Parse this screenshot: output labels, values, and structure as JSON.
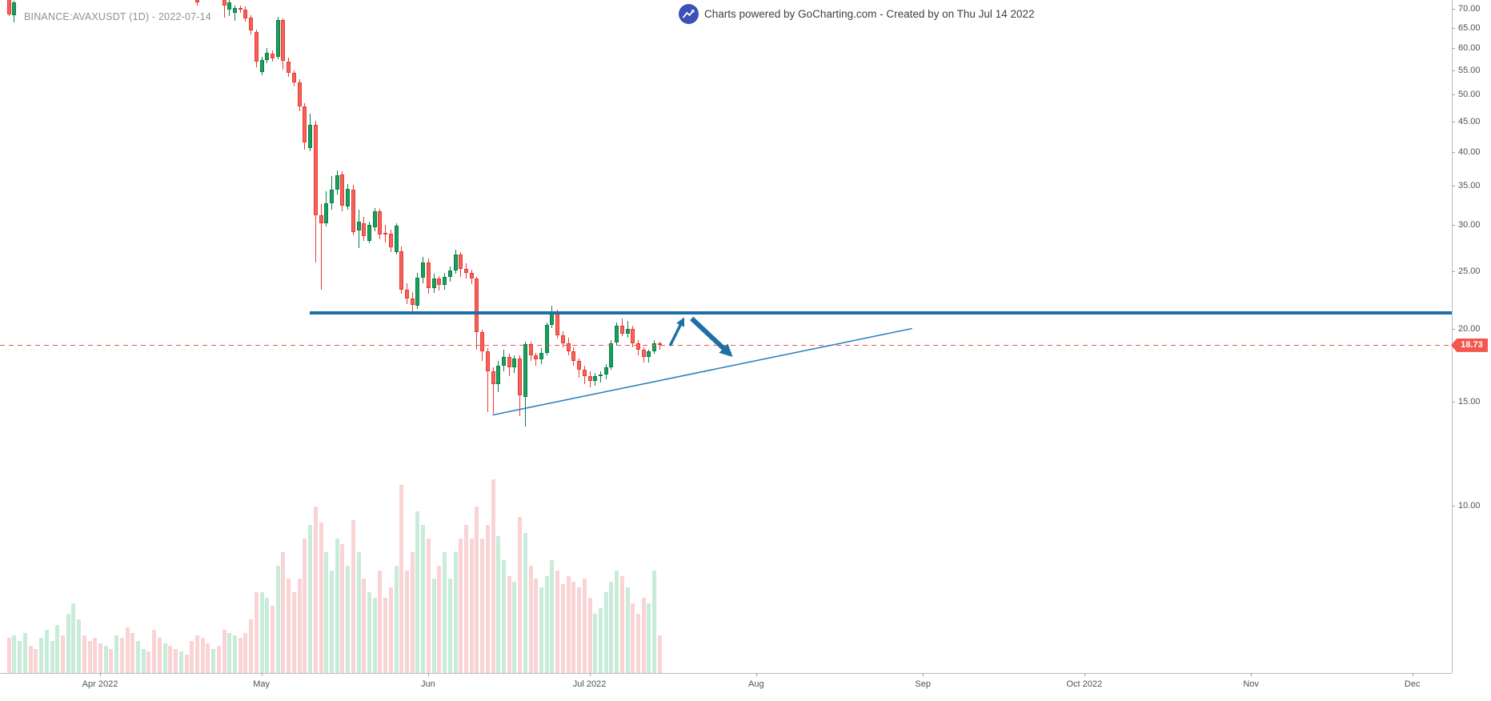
{
  "header": {
    "title": "BINANCE:AVAXUSDT (1D) - 2022-07-14",
    "credit_text": "Charts powered by GoCharting.com - Created by  on Thu Jul 14 2022",
    "logo_icon": "trend-up-arrow-in-circle"
  },
  "last_price": {
    "value": 18.73,
    "label": "18.73"
  },
  "colors": {
    "candle_up": "#19a05f",
    "candle_up_border": "#0d7f48",
    "candle_down": "#f4635b",
    "candle_down_border": "#e93b33",
    "vol_up": "#c8ecd9",
    "vol_down": "#fad3d4",
    "resistance_line": "#1d6fa5",
    "trendline": "#3183bd",
    "arrow": "#1d6fa5",
    "last_price_line": "#f2544d",
    "last_price_tag": "#f4564e",
    "axis_text": "#4d5258",
    "axis_line": "#b6bcc3"
  },
  "price_axis": {
    "ticks": [
      70,
      65,
      60,
      55,
      50,
      45,
      40,
      35,
      30,
      25,
      20,
      15,
      10
    ],
    "format": "0.00",
    "scale": "log"
  },
  "time_axis": {
    "months": [
      {
        "label": "Apr 2022",
        "date": "2022-04-01"
      },
      {
        "label": "May",
        "date": "2022-05-01"
      },
      {
        "label": "Jun",
        "date": "2022-06-01"
      },
      {
        "label": "Jul 2022",
        "date": "2022-07-01"
      },
      {
        "label": "Aug",
        "date": "2022-08-01"
      },
      {
        "label": "Sep",
        "date": "2022-09-01"
      },
      {
        "label": "Oct 2022",
        "date": "2022-10-01"
      },
      {
        "label": "Nov",
        "date": "2022-11-01"
      },
      {
        "label": "Dec",
        "date": "2022-12-01"
      }
    ]
  },
  "chart_data": {
    "type": "candlestick+volume",
    "symbol": "BINANCE:AVAXUSDT",
    "interval": "1D",
    "as_of": "2022-07-14",
    "price_scale": "log",
    "visible_price_range": [
      10,
      72.5
    ],
    "visible_date_range": [
      "2022-03-14",
      "2022-12-08"
    ],
    "grid": "off",
    "annotations": {
      "resistance_ray": {
        "price": 21.25,
        "from_date": "2022-05-10",
        "to": "right-edge"
      },
      "ascending_trendline": {
        "from": {
          "date": "2022-06-13",
          "price": 14.25
        },
        "to": {
          "date": "2022-08-30",
          "price": 20.0
        }
      },
      "arrow_up": {
        "from": {
          "date": "2022-07-16",
          "price": 18.7
        },
        "to": {
          "date": "2022-07-19",
          "price": 21.1
        }
      },
      "arrow_down": {
        "from": {
          "date": "2022-07-20",
          "price": 20.8
        },
        "to": {
          "date": "2022-07-28",
          "price": 17.8
        }
      },
      "last_price_dashed_line": 18.73
    },
    "volume_unit_note": "relative 0-100",
    "candles": [
      [
        "2022-03-15",
        73.8,
        74.2,
        68.0,
        68.5,
        13
      ],
      [
        "2022-03-16",
        68.3,
        72.3,
        66.4,
        71.9,
        14
      ],
      [
        "2022-03-17",
        null,
        null,
        null,
        null,
        12,
        "u"
      ],
      [
        "2022-03-18",
        null,
        null,
        null,
        null,
        15,
        "u"
      ],
      [
        "2022-03-19",
        null,
        null,
        null,
        null,
        10,
        "d"
      ],
      [
        "2022-03-20",
        null,
        null,
        null,
        null,
        9,
        "d"
      ],
      [
        "2022-03-21",
        null,
        null,
        null,
        null,
        13,
        "u"
      ],
      [
        "2022-03-22",
        null,
        null,
        null,
        null,
        16,
        "u"
      ],
      [
        "2022-03-23",
        null,
        null,
        null,
        null,
        12,
        "u"
      ],
      [
        "2022-03-24",
        null,
        null,
        null,
        null,
        18,
        "u"
      ],
      [
        "2022-03-25",
        null,
        null,
        null,
        null,
        14,
        "d"
      ],
      [
        "2022-03-26",
        null,
        null,
        null,
        null,
        22,
        "u"
      ],
      [
        "2022-03-27",
        null,
        null,
        null,
        null,
        26,
        "u"
      ],
      [
        "2022-03-28",
        null,
        null,
        null,
        null,
        20,
        "u"
      ],
      [
        "2022-03-29",
        null,
        null,
        null,
        null,
        14,
        "d"
      ],
      [
        "2022-03-30",
        null,
        null,
        null,
        null,
        12,
        "d"
      ],
      [
        "2022-03-31",
        null,
        null,
        null,
        null,
        13,
        "d"
      ],
      [
        "2022-04-01",
        null,
        null,
        null,
        null,
        11,
        "d"
      ],
      [
        "2022-04-02",
        null,
        null,
        null,
        null,
        10,
        "u"
      ],
      [
        "2022-04-03",
        null,
        null,
        null,
        null,
        9,
        "d"
      ],
      [
        "2022-04-04",
        null,
        null,
        null,
        null,
        14,
        "u"
      ],
      [
        "2022-04-05",
        null,
        null,
        null,
        null,
        13,
        "d"
      ],
      [
        "2022-04-06",
        null,
        null,
        null,
        null,
        17,
        "d"
      ],
      [
        "2022-04-07",
        null,
        null,
        null,
        null,
        15,
        "d"
      ],
      [
        "2022-04-08",
        null,
        null,
        null,
        null,
        12,
        "u"
      ],
      [
        "2022-04-09",
        null,
        null,
        null,
        null,
        9,
        "u"
      ],
      [
        "2022-04-10",
        null,
        null,
        null,
        null,
        8,
        "d"
      ],
      [
        "2022-04-11",
        null,
        null,
        null,
        null,
        16,
        "d"
      ],
      [
        "2022-04-12",
        null,
        null,
        null,
        null,
        13,
        "d"
      ],
      [
        "2022-04-13",
        null,
        null,
        null,
        null,
        11,
        "u"
      ],
      [
        "2022-04-14",
        null,
        null,
        null,
        null,
        10,
        "d"
      ],
      [
        "2022-04-15",
        null,
        null,
        null,
        null,
        9,
        "d"
      ],
      [
        "2022-04-16",
        null,
        null,
        null,
        null,
        8,
        "u"
      ],
      [
        "2022-04-17",
        null,
        null,
        null,
        null,
        7,
        "d"
      ],
      [
        "2022-04-18",
        null,
        null,
        null,
        null,
        12,
        "d"
      ],
      [
        "2022-04-19",
        74.0,
        74.5,
        70.8,
        71.9,
        14
      ],
      [
        "2022-04-20",
        null,
        null,
        null,
        null,
        13,
        "d"
      ],
      [
        "2022-04-21",
        null,
        null,
        null,
        null,
        11,
        "d"
      ],
      [
        "2022-04-22",
        null,
        null,
        null,
        null,
        9,
        "u"
      ],
      [
        "2022-04-23",
        null,
        null,
        null,
        null,
        10,
        "d"
      ],
      [
        "2022-04-24",
        73.0,
        73.4,
        67.7,
        70.9,
        16
      ],
      [
        "2022-04-25",
        69.7,
        72.9,
        68.1,
        71.9,
        15
      ],
      [
        "2022-04-26",
        68.9,
        71.0,
        66.9,
        70.3,
        14
      ],
      [
        "2022-04-27",
        70.3,
        70.8,
        68.9,
        69.9,
        13
      ],
      [
        "2022-04-28",
        69.9,
        70.6,
        66.5,
        67.4,
        15
      ],
      [
        "2022-04-29",
        67.7,
        68.2,
        63.4,
        64.3,
        20
      ],
      [
        "2022-04-30",
        64.0,
        64.6,
        55.7,
        56.9,
        30
      ],
      [
        "2022-05-01",
        54.6,
        58.0,
        53.9,
        57.2,
        30
      ],
      [
        "2022-05-02",
        57.2,
        60.0,
        56.6,
        59.0,
        28
      ],
      [
        "2022-05-03",
        58.8,
        59.4,
        57.0,
        57.6,
        25
      ],
      [
        "2022-05-04",
        58.0,
        67.9,
        57.5,
        66.9,
        40
      ],
      [
        "2022-05-05",
        66.9,
        67.4,
        55.2,
        57.0,
        45
      ],
      [
        "2022-05-06",
        57.0,
        57.8,
        53.6,
        54.5,
        35
      ],
      [
        "2022-05-07",
        54.5,
        55.0,
        51.6,
        52.4,
        30
      ],
      [
        "2022-05-08",
        52.4,
        53.2,
        46.8,
        47.8,
        35
      ],
      [
        "2022-05-09",
        47.8,
        48.4,
        40.3,
        41.5,
        50
      ],
      [
        "2022-05-10",
        40.6,
        46.4,
        40.0,
        44.5,
        55
      ],
      [
        "2022-05-11",
        44.5,
        45.2,
        25.9,
        31.2,
        62
      ],
      [
        "2022-05-12",
        31.2,
        32.6,
        23.3,
        30.2,
        56
      ],
      [
        "2022-05-13",
        30.2,
        34.3,
        29.8,
        32.7,
        45
      ],
      [
        "2022-05-14",
        32.7,
        36.3,
        31.9,
        34.5,
        38
      ],
      [
        "2022-05-15",
        34.5,
        37.2,
        33.8,
        36.5,
        50
      ],
      [
        "2022-05-16",
        36.6,
        37.0,
        31.7,
        32.4,
        48
      ],
      [
        "2022-05-17",
        32.3,
        35.2,
        31.9,
        34.6,
        40
      ],
      [
        "2022-05-18",
        34.5,
        35.1,
        28.8,
        29.2,
        57
      ],
      [
        "2022-05-19",
        29.4,
        31.9,
        27.4,
        30.4,
        45
      ],
      [
        "2022-05-20",
        30.2,
        31.0,
        28.2,
        28.7,
        35
      ],
      [
        "2022-05-21",
        28.2,
        30.4,
        27.9,
        30.0,
        30
      ],
      [
        "2022-05-22",
        29.7,
        32.1,
        29.3,
        31.7,
        28
      ],
      [
        "2022-05-23",
        31.7,
        32.0,
        28.4,
        28.9,
        38
      ],
      [
        "2022-05-24",
        29.1,
        30.0,
        28.0,
        29.0,
        28
      ],
      [
        "2022-05-25",
        29.0,
        29.5,
        27.0,
        27.5,
        32
      ],
      [
        "2022-05-26",
        27.0,
        30.2,
        26.7,
        29.9,
        40
      ],
      [
        "2022-05-27",
        27.1,
        27.6,
        22.9,
        23.3,
        70
      ],
      [
        "2022-05-28",
        23.3,
        23.9,
        22.0,
        22.5,
        38
      ],
      [
        "2022-05-29",
        22.5,
        23.1,
        21.4,
        21.9,
        45
      ],
      [
        "2022-05-30",
        21.9,
        24.9,
        21.6,
        24.4,
        60
      ],
      [
        "2022-05-31",
        24.4,
        26.5,
        23.9,
        25.9,
        55
      ],
      [
        "2022-06-01",
        25.9,
        26.3,
        22.9,
        23.4,
        50
      ],
      [
        "2022-06-02",
        23.4,
        24.8,
        23.0,
        24.3,
        35
      ],
      [
        "2022-06-03",
        24.3,
        24.6,
        23.2,
        23.7,
        40
      ],
      [
        "2022-06-04",
        23.7,
        24.9,
        23.3,
        24.5,
        45
      ],
      [
        "2022-06-05",
        24.5,
        25.5,
        24.0,
        25.1,
        35
      ],
      [
        "2022-06-06",
        25.1,
        27.2,
        24.8,
        26.7,
        45
      ],
      [
        "2022-06-07",
        26.7,
        27.0,
        24.5,
        25.3,
        50
      ],
      [
        "2022-06-08",
        25.3,
        25.8,
        24.3,
        24.9,
        55
      ],
      [
        "2022-06-09",
        24.9,
        25.2,
        23.8,
        24.3,
        50
      ],
      [
        "2022-06-10",
        24.3,
        24.5,
        18.4,
        19.7,
        62
      ],
      [
        "2022-06-11",
        19.7,
        19.9,
        17.6,
        18.3,
        50
      ],
      [
        "2022-06-12",
        18.3,
        18.5,
        14.4,
        16.9,
        55
      ],
      [
        "2022-06-13",
        16.9,
        17.2,
        14.3,
        16.1,
        72
      ],
      [
        "2022-06-14",
        16.1,
        17.6,
        15.6,
        17.3,
        51
      ],
      [
        "2022-06-15",
        17.3,
        18.4,
        16.9,
        17.9,
        42
      ],
      [
        "2022-06-16",
        17.9,
        18.1,
        16.6,
        17.2,
        36
      ],
      [
        "2022-06-17",
        17.2,
        18.0,
        16.8,
        17.8,
        34
      ],
      [
        "2022-06-18",
        17.8,
        18.0,
        14.2,
        15.4,
        58
      ],
      [
        "2022-06-19",
        15.3,
        19.0,
        13.6,
        18.8,
        52
      ],
      [
        "2022-06-20",
        18.8,
        19.0,
        17.6,
        18.0,
        40
      ],
      [
        "2022-06-21",
        18.0,
        18.2,
        17.3,
        17.7,
        35
      ],
      [
        "2022-06-22",
        17.7,
        18.5,
        17.4,
        18.2,
        32
      ],
      [
        "2022-06-23",
        18.2,
        20.5,
        18.0,
        20.3,
        36
      ],
      [
        "2022-06-24",
        20.3,
        21.9,
        20.0,
        21.4,
        42
      ],
      [
        "2022-06-25",
        21.3,
        21.5,
        19.2,
        19.5,
        38
      ],
      [
        "2022-06-26",
        19.5,
        19.8,
        18.6,
        18.9,
        33
      ],
      [
        "2022-06-27",
        18.9,
        19.3,
        18.0,
        18.3,
        36
      ],
      [
        "2022-06-28",
        18.3,
        18.6,
        17.3,
        17.6,
        34
      ],
      [
        "2022-06-29",
        17.6,
        17.8,
        16.5,
        17.0,
        32
      ],
      [
        "2022-06-30",
        17.0,
        17.3,
        16.1,
        16.6,
        35
      ],
      [
        "2022-07-01",
        16.6,
        16.9,
        15.9,
        16.3,
        28
      ],
      [
        "2022-07-02",
        16.3,
        16.8,
        16.0,
        16.6,
        22
      ],
      [
        "2022-07-03",
        16.6,
        16.9,
        16.2,
        16.7,
        24
      ],
      [
        "2022-07-04",
        16.7,
        17.4,
        16.4,
        17.2,
        30
      ],
      [
        "2022-07-05",
        17.2,
        19.1,
        17.0,
        18.9,
        34
      ],
      [
        "2022-07-06",
        18.9,
        20.5,
        18.7,
        20.2,
        38
      ],
      [
        "2022-07-07",
        20.2,
        20.8,
        19.4,
        19.6,
        36
      ],
      [
        "2022-07-08",
        19.6,
        20.6,
        19.3,
        20.0,
        32
      ],
      [
        "2022-07-09",
        20.0,
        20.2,
        18.6,
        18.9,
        26
      ],
      [
        "2022-07-10",
        18.9,
        19.1,
        18.0,
        18.4,
        22
      ],
      [
        "2022-07-11",
        18.4,
        18.6,
        17.5,
        17.9,
        28
      ],
      [
        "2022-07-12",
        17.9,
        18.4,
        17.5,
        18.3,
        26
      ],
      [
        "2022-07-13",
        18.3,
        19.1,
        18.1,
        18.9,
        38
      ],
      [
        "2022-07-14",
        18.9,
        19.0,
        18.4,
        18.73,
        14
      ]
    ]
  }
}
